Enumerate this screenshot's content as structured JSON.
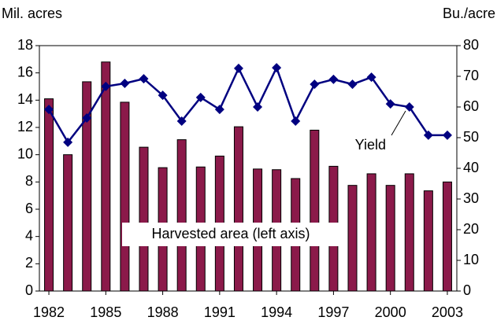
{
  "chart_data": {
    "type": "bar",
    "y_label": "Mil. acres",
    "y2_label": "Bu./acre",
    "categories": [
      "1982",
      null,
      null,
      "1985",
      null,
      null,
      "1988",
      null,
      null,
      "1991",
      null,
      null,
      "1994",
      null,
      null,
      "1997",
      null,
      null,
      "2000",
      null,
      null,
      "2003"
    ],
    "series": [
      {
        "type": "bar",
        "color": "#8b1a4a",
        "axis": "y",
        "values": [
          14.1,
          10.0,
          15.35,
          16.8,
          13.85,
          10.55,
          9.05,
          11.1,
          9.1,
          9.9,
          12.05,
          8.95,
          8.9,
          8.25,
          11.8,
          9.15,
          7.75,
          8.6,
          7.75,
          8.6,
          7.35,
          8.0
        ]
      },
      {
        "type": "line",
        "color": "#000080",
        "axis": "y2",
        "values": [
          59.2,
          48.5,
          56.4,
          66.7,
          67.7,
          69.2,
          63.8,
          55.4,
          63.1,
          59.2,
          72.6,
          60.0,
          72.8,
          55.4,
          67.4,
          69.0,
          67.4,
          69.7,
          61.0,
          60.0,
          50.8,
          50.8
        ]
      }
    ],
    "annotations": [
      {
        "text": "Yield"
      },
      {
        "text": "Harvested area (left axis)"
      }
    ],
    "ylim": [
      0,
      18
    ],
    "yticks": [
      0,
      2,
      4,
      6,
      8,
      10,
      12,
      14,
      16,
      18
    ],
    "y2lim": [
      0,
      80
    ],
    "y2ticks": [
      0,
      10,
      20,
      30,
      40,
      50,
      60,
      70,
      80
    ]
  }
}
